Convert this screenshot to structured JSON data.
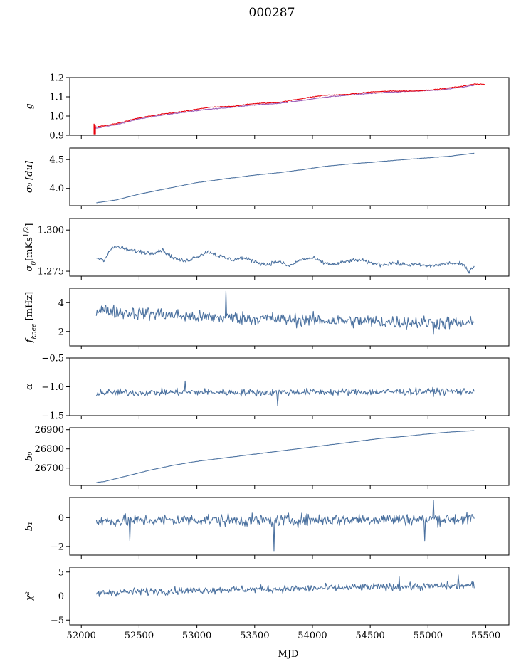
{
  "figure": {
    "title": "000287",
    "xlabel": "MJD",
    "xlim": [
      51900,
      55700
    ],
    "xticks": [
      52000,
      52500,
      53000,
      53500,
      54000,
      54500,
      55000,
      55500
    ],
    "colors": {
      "primary": "#4c72a0",
      "overlay": "#e8000b",
      "overlay_under": "#9b59b6"
    }
  },
  "chart_data": [
    {
      "type": "line",
      "id": "g",
      "ylabel": "g",
      "ylim": [
        0.9,
        1.2
      ],
      "yticks": [
        0.9,
        1.0,
        1.1,
        1.2
      ],
      "ytick_labels": [
        "0.9",
        "1.0",
        "1.1",
        "1.2"
      ],
      "x_start": 52120,
      "x_end": 55490,
      "series": [
        {
          "color": "#9b59b6",
          "noise": 0.002,
          "x": [
            52120,
            52300,
            52500,
            52700,
            52900,
            53100,
            53300,
            53500,
            53700,
            53900,
            54100,
            54300,
            54500,
            54700,
            54900,
            55100,
            55300,
            55400
          ],
          "y": [
            0.935,
            0.955,
            0.985,
            1.005,
            1.02,
            1.035,
            1.045,
            1.058,
            1.065,
            1.08,
            1.098,
            1.108,
            1.118,
            1.125,
            1.13,
            1.135,
            1.15,
            1.16
          ]
        },
        {
          "color": "#e8000b",
          "noise": 0.002,
          "x": [
            52110,
            52300,
            52500,
            52700,
            52900,
            53100,
            53300,
            53500,
            53700,
            53900,
            54100,
            54300,
            54500,
            54700,
            54900,
            55100,
            55300,
            55400,
            55490
          ],
          "y": [
            0.94,
            0.96,
            0.99,
            1.01,
            1.025,
            1.045,
            1.05,
            1.065,
            1.07,
            1.09,
            1.108,
            1.112,
            1.125,
            1.13,
            1.13,
            1.14,
            1.155,
            1.167,
            1.165
          ]
        }
      ]
    },
    {
      "type": "line",
      "id": "sigma0_du",
      "ylabel": "σ₀ [du]",
      "ylim": [
        3.7,
        4.7
      ],
      "yticks": [
        4.0,
        4.5
      ],
      "ytick_labels": [
        "4.0",
        "4.5"
      ],
      "series": [
        {
          "color": "#4c72a0",
          "noise": 0.003,
          "x": [
            52130,
            52300,
            52500,
            52800,
            53000,
            53300,
            53500,
            53700,
            53900,
            54100,
            54300,
            54500,
            54800,
            55000,
            55200,
            55400
          ],
          "y": [
            3.75,
            3.8,
            3.9,
            4.02,
            4.1,
            4.18,
            4.23,
            4.27,
            4.32,
            4.38,
            4.42,
            4.45,
            4.5,
            4.53,
            4.56,
            4.61
          ]
        }
      ]
    },
    {
      "type": "line",
      "id": "sigma0_mks",
      "ylabel": "σ₀[mKs^1/2]",
      "ylim": [
        1.272,
        1.307
      ],
      "yticks": [
        1.275,
        1.3
      ],
      "ytick_labels": [
        "1.275",
        "1.300"
      ],
      "series": [
        {
          "color": "#4c72a0",
          "noise": 0.0012,
          "x": [
            52130,
            52200,
            52250,
            52300,
            52400,
            52500,
            52600,
            52700,
            52800,
            52900,
            53000,
            53100,
            53200,
            53300,
            53400,
            53500,
            53600,
            53700,
            53800,
            53900,
            54000,
            54100,
            54200,
            54300,
            54400,
            54500,
            54600,
            54700,
            54800,
            54900,
            55000,
            55100,
            55200,
            55300,
            55350,
            55400
          ],
          "y": [
            1.283,
            1.282,
            1.288,
            1.29,
            1.288,
            1.287,
            1.286,
            1.288,
            1.283,
            1.281,
            1.284,
            1.287,
            1.284,
            1.282,
            1.283,
            1.281,
            1.279,
            1.281,
            1.278,
            1.282,
            1.283,
            1.28,
            1.279,
            1.281,
            1.282,
            1.28,
            1.279,
            1.28,
            1.279,
            1.279,
            1.278,
            1.279,
            1.28,
            1.279,
            1.275,
            1.278
          ]
        }
      ]
    },
    {
      "type": "line",
      "id": "fknee",
      "ylabel": "f_knee [mHz]",
      "ylim": [
        1.0,
        5.0
      ],
      "yticks": [
        2,
        4
      ],
      "ytick_labels": [
        "2",
        "4"
      ],
      "series": [
        {
          "color": "#4c72a0",
          "noise": 0.45,
          "x": [
            52130,
            52400,
            52700,
            53000,
            53300,
            53600,
            53900,
            54200,
            54500,
            54800,
            55100,
            55400
          ],
          "y": [
            3.5,
            3.3,
            3.2,
            3.0,
            2.95,
            2.9,
            2.8,
            2.75,
            2.7,
            2.65,
            2.6,
            2.55
          ],
          "spikes": [
            [
              53250,
              4.8
            ],
            [
              55050,
              1.8
            ]
          ]
        }
      ]
    },
    {
      "type": "line",
      "id": "alpha",
      "ylabel": "α",
      "ylim": [
        -1.5,
        -0.5
      ],
      "yticks": [
        -1.5,
        -1.0,
        -0.5
      ],
      "ytick_labels": [
        "−1.5",
        "−1.0",
        "−0.5"
      ],
      "series": [
        {
          "color": "#4c72a0",
          "noise": 0.06,
          "x": [
            52130,
            52500,
            53000,
            53500,
            54000,
            54500,
            55000,
            55400
          ],
          "y": [
            -1.1,
            -1.1,
            -1.09,
            -1.1,
            -1.09,
            -1.09,
            -1.08,
            -1.08
          ],
          "spikes": [
            [
              53700,
              -1.33
            ],
            [
              52900,
              -0.9
            ]
          ]
        }
      ]
    },
    {
      "type": "line",
      "id": "b0",
      "ylabel": "b₀",
      "ylim": [
        26610,
        26910
      ],
      "yticks": [
        26700,
        26800,
        26900
      ],
      "ytick_labels": [
        "26700",
        "26800",
        "26900"
      ],
      "series": [
        {
          "color": "#4c72a0",
          "noise": 0.6,
          "x": [
            52130,
            52200,
            52400,
            52600,
            52800,
            53000,
            53200,
            53400,
            53600,
            53800,
            54000,
            54200,
            54400,
            54600,
            54800,
            55000,
            55200,
            55400
          ],
          "y": [
            26625,
            26630,
            26660,
            26690,
            26715,
            26735,
            26750,
            26765,
            26780,
            26795,
            26810,
            26825,
            26840,
            26855,
            26865,
            26878,
            26888,
            26895
          ]
        }
      ]
    },
    {
      "type": "line",
      "id": "b1",
      "ylabel": "b₁",
      "ylim": [
        -2.6,
        1.4
      ],
      "yticks": [
        -2,
        0
      ],
      "ytick_labels": [
        "−2",
        "0"
      ],
      "series": [
        {
          "color": "#4c72a0",
          "noise": 0.42,
          "x": [
            52130,
            52500,
            53000,
            53500,
            54000,
            54500,
            55000,
            55400
          ],
          "y": [
            -0.25,
            -0.2,
            -0.15,
            -0.2,
            -0.15,
            -0.1,
            -0.1,
            -0.1
          ],
          "spikes": [
            [
              53670,
              -2.3
            ],
            [
              52420,
              -1.6
            ],
            [
              54970,
              -1.6
            ],
            [
              55050,
              1.2
            ]
          ]
        }
      ]
    },
    {
      "type": "line",
      "id": "chi2",
      "ylabel": "χ²",
      "ylim": [
        -6,
        6
      ],
      "yticks": [
        -5,
        0,
        5
      ],
      "ytick_labels": [
        "−5",
        "0",
        "5"
      ],
      "series": [
        {
          "color": "#4c72a0",
          "noise": 0.75,
          "x": [
            52130,
            52300,
            52600,
            53000,
            53400,
            53800,
            54200,
            54600,
            55000,
            55400
          ],
          "y": [
            0.6,
            0.8,
            1.0,
            1.2,
            1.4,
            1.5,
            1.7,
            1.9,
            2.0,
            2.2
          ],
          "spikes": [
            [
              55260,
              4.4
            ],
            [
              54750,
              4.0
            ]
          ]
        }
      ]
    }
  ]
}
